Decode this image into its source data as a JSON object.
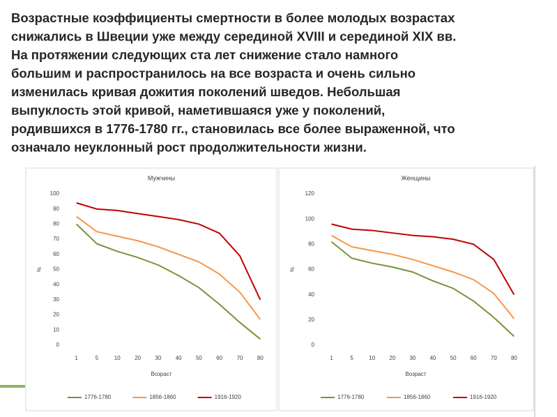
{
  "header": {
    "lines": [
      "Возрастные коэффициенты смертности в более молодых возрастах",
      "снижались в Швеции уже между серединой XVIII и серединой XIX вв.",
      "На протяжении следующих ста лет снижение стало намного",
      "большим и распространилось на все возраста и очень сильно",
      "изменилась кривая дожития поколений шведов. Небольшая",
      "выпуклость этой кривой, наметившаяся уже у поколений,",
      "родившихся в 1776-1780 гг., становилась все более выраженной, что",
      "означало неуклонный рост продолжительности жизни."
    ]
  },
  "chart_data": [
    {
      "type": "line",
      "title": "Мужчины",
      "x_label": "Возраст",
      "y_label": "%",
      "categories": [
        "1",
        "5",
        "10",
        "20",
        "30",
        "40",
        "50",
        "60",
        "70",
        "80"
      ],
      "series": [
        {
          "name": "1776-1780",
          "color": "#77933c",
          "values": [
            80,
            67,
            62,
            58,
            53,
            46,
            38,
            27,
            15,
            4
          ]
        },
        {
          "name": "1856-1860",
          "color": "#f79646",
          "values": [
            85,
            75,
            72,
            69,
            65,
            60,
            55,
            47,
            35,
            17
          ]
        },
        {
          "name": "1916-1920",
          "color": "#c00000",
          "values": [
            94,
            90,
            89,
            87,
            85,
            83,
            80,
            74,
            59,
            30
          ]
        }
      ],
      "ylim": [
        0,
        100
      ],
      "yticks": [
        0,
        10,
        20,
        30,
        40,
        50,
        60,
        70,
        80,
        90,
        100
      ],
      "grid": false,
      "legend": "bottom"
    },
    {
      "type": "line",
      "title": "Женщины",
      "x_label": "Возраст",
      "y_label": "%",
      "categories": [
        "1",
        "5",
        "10",
        "20",
        "30",
        "40",
        "50",
        "60",
        "70",
        "80"
      ],
      "series": [
        {
          "name": "1776-1780",
          "color": "#77933c",
          "values": [
            82,
            69,
            65,
            62,
            58,
            51,
            45,
            35,
            22,
            7
          ]
        },
        {
          "name": "1856-1860",
          "color": "#f79646",
          "values": [
            87,
            78,
            75,
            72,
            68,
            63,
            58,
            52,
            41,
            21
          ]
        },
        {
          "name": "1916-1920",
          "color": "#c00000",
          "values": [
            96,
            92,
            91,
            89,
            87,
            86,
            84,
            80,
            68,
            40
          ]
        }
      ],
      "ylim": [
        0,
        120
      ],
      "yticks": [
        0,
        20,
        40,
        60,
        80,
        100,
        120
      ],
      "grid": false,
      "legend": "bottom"
    }
  ]
}
